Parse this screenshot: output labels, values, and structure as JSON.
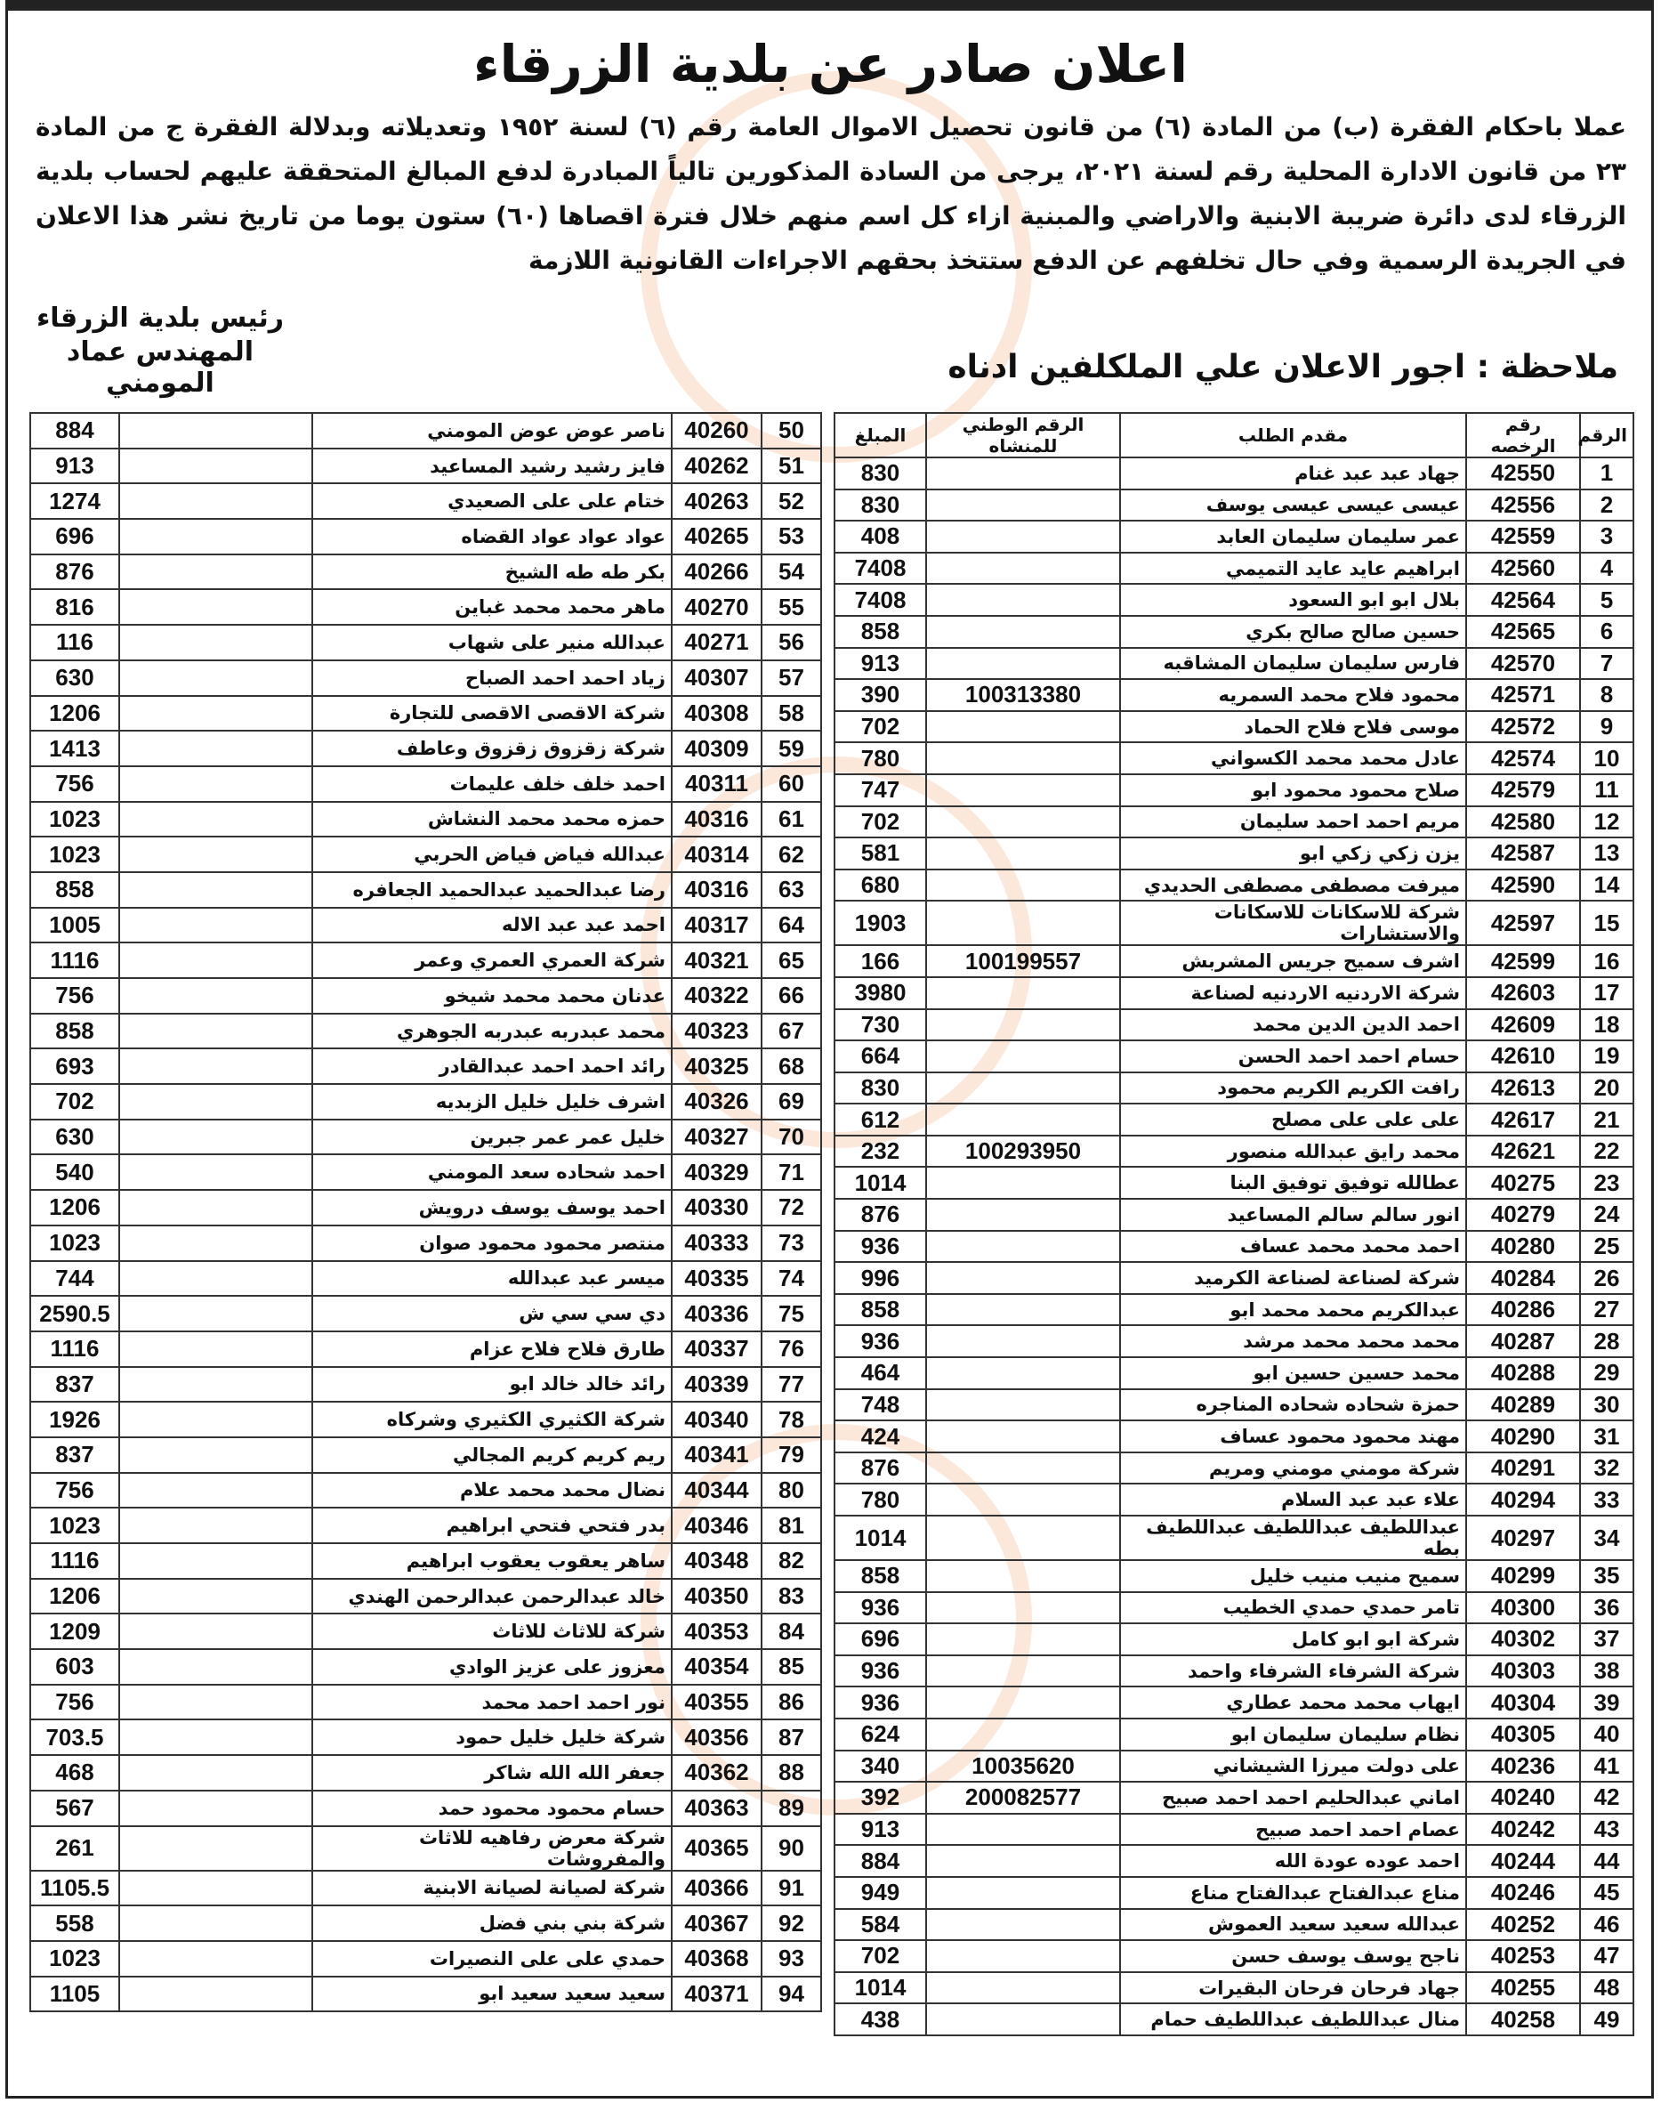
{
  "title": "اعلان صادر عن بلدية الزرقاء",
  "paragraph_lines": [
    "عملا باحكام الفقرة (ب) من المادة (٦) من قانون تحصيل الاموال العامة رقم (٦) لسنة ١٩٥٢ وتعديلاته وبدلالة الفقرة ج من المادة",
    "٢٣ من قانون الادارة المحلية رقم لسنة ٢٠٢١، يرجى من السادة المذكورين تالياً المبادرة لدفع المبالغ المتحققة عليهم لحساب بلدية",
    "الزرقاء لدى دائرة ضريبة الابنية والاراضي والمبنية ازاء كل اسم منهم خلال فترة اقصاها (٦٠) ستون يوما من",
    "تاريخ نشر هذا الاعلان في الجريدة الرسمية وفي حال تخلفهم عن الدفع ستتخذ بحقهم الاجراءات القانونية اللازمة"
  ],
  "signature": {
    "line1": "رئيس بلدية الزرقاء",
    "line2": "المهندس عماد المومني"
  },
  "note": "ملاحظة : اجور الاعلان علي الملكلفين ادناه",
  "table": {
    "headers": {
      "num": "الرقم",
      "license": "رقم الرخصه",
      "name": "مقدم الطلب",
      "national": "الرقم الوطني  للمنشاه",
      "amount": "المبلغ"
    },
    "right_rows": [
      {
        "num": "1",
        "license": "42550",
        "name": "جهاد عبد عبد غنام",
        "national": "",
        "amount": "830"
      },
      {
        "num": "2",
        "license": "42556",
        "name": "عيسى عيسى عيسى يوسف",
        "national": "",
        "amount": "830"
      },
      {
        "num": "3",
        "license": "42559",
        "name": "عمر سليمان سليمان العابد",
        "national": "",
        "amount": "408"
      },
      {
        "num": "4",
        "license": "42560",
        "name": "ابراهيم عايد عايد التميمي",
        "national": "",
        "amount": "7408"
      },
      {
        "num": "5",
        "license": "42564",
        "name": "بلال ابو ابو السعود",
        "national": "",
        "amount": "7408"
      },
      {
        "num": "6",
        "license": "42565",
        "name": "حسين صالح صالح بكري",
        "national": "",
        "amount": "858"
      },
      {
        "num": "7",
        "license": "42570",
        "name": "فارس سليمان سليمان المشاقبه",
        "national": "",
        "amount": "913"
      },
      {
        "num": "8",
        "license": "42571",
        "name": "محمود فلاح محمد السمريه",
        "national": "100313380",
        "amount": "390"
      },
      {
        "num": "9",
        "license": "42572",
        "name": "موسى فلاح فلاح الحماد",
        "national": "",
        "amount": "702"
      },
      {
        "num": "10",
        "license": "42574",
        "name": "عادل محمد محمد الكسواني",
        "national": "",
        "amount": "780"
      },
      {
        "num": "11",
        "license": "42579",
        "name": "صلاح محمود محمود ابو",
        "national": "",
        "amount": "747"
      },
      {
        "num": "12",
        "license": "42580",
        "name": "مريم احمد احمد سليمان",
        "national": "",
        "amount": "702"
      },
      {
        "num": "13",
        "license": "42587",
        "name": "يزن زكي زكي ابو",
        "national": "",
        "amount": "581"
      },
      {
        "num": "14",
        "license": "42590",
        "name": "ميرفت مصطفى مصطفى الحديدي",
        "national": "",
        "amount": "680"
      },
      {
        "num": "15",
        "license": "42597",
        "name": "شركة للاسكانات للاسكانات والاستشارات",
        "national": "",
        "amount": "1903"
      },
      {
        "num": "16",
        "license": "42599",
        "name": "اشرف سميح جريس المشربش",
        "national": "100199557",
        "amount": "166"
      },
      {
        "num": "17",
        "license": "42603",
        "name": "شركة الاردنيه الاردنيه لصناعة",
        "national": "",
        "amount": "3980"
      },
      {
        "num": "18",
        "license": "42609",
        "name": "احمد الدين الدين محمد",
        "national": "",
        "amount": "730"
      },
      {
        "num": "19",
        "license": "42610",
        "name": "حسام احمد احمد الحسن",
        "national": "",
        "amount": "664"
      },
      {
        "num": "20",
        "license": "42613",
        "name": "رافت الكريم الكريم محمود",
        "national": "",
        "amount": "830"
      },
      {
        "num": "21",
        "license": "42617",
        "name": "على على على مصلح",
        "national": "",
        "amount": "612"
      },
      {
        "num": "22",
        "license": "42621",
        "name": "محمد رايق عبدالله منصور",
        "national": "100293950",
        "amount": "232"
      },
      {
        "num": "23",
        "license": "40275",
        "name": "عطالله توفيق توفيق البنا",
        "national": "",
        "amount": "1014"
      },
      {
        "num": "24",
        "license": "40279",
        "name": "انور سالم سالم المساعيد",
        "national": "",
        "amount": "876"
      },
      {
        "num": "25",
        "license": "40280",
        "name": "احمد محمد محمد عساف",
        "national": "",
        "amount": "936"
      },
      {
        "num": "26",
        "license": "40284",
        "name": "شركة لصناعة لصناعة الكرميد",
        "national": "",
        "amount": "996"
      },
      {
        "num": "27",
        "license": "40286",
        "name": "عبدالكريم محمد محمد ابو",
        "national": "",
        "amount": "858"
      },
      {
        "num": "28",
        "license": "40287",
        "name": "محمد محمد محمد مرشد",
        "national": "",
        "amount": "936"
      },
      {
        "num": "29",
        "license": "40288",
        "name": "محمد حسين حسين ابو",
        "national": "",
        "amount": "464"
      },
      {
        "num": "30",
        "license": "40289",
        "name": "حمزة شحاده شحاده المناجره",
        "national": "",
        "amount": "748"
      },
      {
        "num": "31",
        "license": "40290",
        "name": "مهند محمود محمود عساف",
        "national": "",
        "amount": "424"
      },
      {
        "num": "32",
        "license": "40291",
        "name": "شركة مومني مومني ومريم",
        "national": "",
        "amount": "876"
      },
      {
        "num": "33",
        "license": "40294",
        "name": "علاء عبد عبد السلام",
        "national": "",
        "amount": "780"
      },
      {
        "num": "34",
        "license": "40297",
        "name": "عبداللطيف عبداللطيف  عبداللطيف  بطه",
        "national": "",
        "amount": "1014"
      },
      {
        "num": "35",
        "license": "40299",
        "name": "سميح منيب منيب خليل",
        "national": "",
        "amount": "858"
      },
      {
        "num": "36",
        "license": "40300",
        "name": "تامر حمدي حمدي الخطيب",
        "national": "",
        "amount": "936"
      },
      {
        "num": "37",
        "license": "40302",
        "name": "شركة ابو ابو كامل",
        "national": "",
        "amount": "696"
      },
      {
        "num": "38",
        "license": "40303",
        "name": "شركة الشرفاء الشرفاء واحمد",
        "national": "",
        "amount": "936"
      },
      {
        "num": "39",
        "license": "40304",
        "name": "ايهاب محمد محمد عطاري",
        "national": "",
        "amount": "936"
      },
      {
        "num": "40",
        "license": "40305",
        "name": "نظام سليمان سليمان ابو",
        "national": "",
        "amount": "624"
      },
      {
        "num": "41",
        "license": "40236",
        "name": "على دولت ميرزا الشيشاني",
        "national": "10035620",
        "amount": "340"
      },
      {
        "num": "42",
        "license": "40240",
        "name": "اماني عبدالحليم احمد احمد صبيح",
        "national": "200082577",
        "amount": "392"
      },
      {
        "num": "43",
        "license": "40242",
        "name": "عصام احمد احمد صبيح",
        "national": "",
        "amount": "913"
      },
      {
        "num": "44",
        "license": "40244",
        "name": "احمد عوده عودة الله",
        "national": "",
        "amount": "884"
      },
      {
        "num": "45",
        "license": "40246",
        "name": "مناع عبدالفتاح عبدالفتاح مناع",
        "national": "",
        "amount": "949"
      },
      {
        "num": "46",
        "license": "40252",
        "name": "عبدالله سعيد سعيد العموش",
        "national": "",
        "amount": "584"
      },
      {
        "num": "47",
        "license": "40253",
        "name": "ناجح يوسف يوسف حسن",
        "national": "",
        "amount": "702"
      },
      {
        "num": "48",
        "license": "40255",
        "name": "جهاد فرحان فرحان البقيرات",
        "national": "",
        "amount": "1014"
      },
      {
        "num": "49",
        "license": "40258",
        "name": "منال عبداللطيف عبداللطيف حمام",
        "national": "",
        "amount": "438"
      }
    ],
    "left_rows": [
      {
        "num": "50",
        "license": "40260",
        "name": "ناصر عوض عوض المومني",
        "national": "",
        "amount": "884"
      },
      {
        "num": "51",
        "license": "40262",
        "name": "فايز رشيد رشيد المساعيد",
        "national": "",
        "amount": "913"
      },
      {
        "num": "52",
        "license": "40263",
        "name": "ختام على على الصعيدي",
        "national": "",
        "amount": "1274"
      },
      {
        "num": "53",
        "license": "40265",
        "name": "عواد عواد عواد القضاه",
        "national": "",
        "amount": "696"
      },
      {
        "num": "54",
        "license": "40266",
        "name": "بكر طه طه الشيخ",
        "national": "",
        "amount": "876"
      },
      {
        "num": "55",
        "license": "40270",
        "name": "ماهر محمد محمد غباين",
        "national": "",
        "amount": "816"
      },
      {
        "num": "56",
        "license": "40271",
        "name": "عبدالله منير على شهاب",
        "national": "",
        "amount": "116"
      },
      {
        "num": "57",
        "license": "40307",
        "name": "زياد احمد احمد الصباح",
        "national": "",
        "amount": "630"
      },
      {
        "num": "58",
        "license": "40308",
        "name": "شركة الاقصى الاقصى للتجارة",
        "national": "",
        "amount": "1206"
      },
      {
        "num": "59",
        "license": "40309",
        "name": "شركة زقزوق  زقزوق وعاطف",
        "national": "",
        "amount": "1413"
      },
      {
        "num": "60",
        "license": "40311",
        "name": "احمد خلف خلف عليمات",
        "national": "",
        "amount": "756"
      },
      {
        "num": "61",
        "license": "40316",
        "name": "حمزه محمد محمد النشاش",
        "national": "",
        "amount": "1023"
      },
      {
        "num": "62",
        "license": "40314",
        "name": "عبدالله فياض فياض الحربي",
        "national": "",
        "amount": "1023"
      },
      {
        "num": "63",
        "license": "40316",
        "name": "رضا عبدالحميد عبدالحميد الجعافره",
        "national": "",
        "amount": "858"
      },
      {
        "num": "64",
        "license": "40317",
        "name": "احمد عبد عبد الاله",
        "national": "",
        "amount": "1005"
      },
      {
        "num": "65",
        "license": "40321",
        "name": "شركة العمري العمري وعمر",
        "national": "",
        "amount": "1116"
      },
      {
        "num": "66",
        "license": "40322",
        "name": "عدنان محمد محمد شيخو",
        "national": "",
        "amount": "756"
      },
      {
        "num": "67",
        "license": "40323",
        "name": "محمد عبدربه عبدربه الجوهري",
        "national": "",
        "amount": "858"
      },
      {
        "num": "68",
        "license": "40325",
        "name": "رائد احمد احمد عبدالقادر",
        "national": "",
        "amount": "693"
      },
      {
        "num": "69",
        "license": "40326",
        "name": "اشرف خليل خليل الزبديه",
        "national": "",
        "amount": "702"
      },
      {
        "num": "70",
        "license": "40327",
        "name": "خليل عمر عمر جبرين",
        "national": "",
        "amount": "630"
      },
      {
        "num": "71",
        "license": "40329",
        "name": "احمد شحاده سعد المومني",
        "national": "",
        "amount": "540"
      },
      {
        "num": "72",
        "license": "40330",
        "name": "احمد يوسف يوسف درويش",
        "national": "",
        "amount": "1206"
      },
      {
        "num": "73",
        "license": "40333",
        "name": "منتصر محمود محمود صوان",
        "national": "",
        "amount": "1023"
      },
      {
        "num": "74",
        "license": "40335",
        "name": "ميسر عبد عبدالله",
        "national": "",
        "amount": "744"
      },
      {
        "num": "75",
        "license": "40336",
        "name": "دي سي سي ش",
        "national": "",
        "amount": "2590.5"
      },
      {
        "num": "76",
        "license": "40337",
        "name": "طارق فلاح فلاح عزام",
        "national": "",
        "amount": "1116"
      },
      {
        "num": "77",
        "license": "40339",
        "name": "رائد خالد خالد ابو",
        "national": "",
        "amount": "837"
      },
      {
        "num": "78",
        "license": "40340",
        "name": "شركة الكثيري الكثيري وشركاه",
        "national": "",
        "amount": "1926"
      },
      {
        "num": "79",
        "license": "40341",
        "name": "ريم كريم كريم المجالي",
        "national": "",
        "amount": "837"
      },
      {
        "num": "80",
        "license": "40344",
        "name": "نضال محمد محمد علام",
        "national": "",
        "amount": "756"
      },
      {
        "num": "81",
        "license": "40346",
        "name": "بدر فتحي فتحي ابراهيم",
        "national": "",
        "amount": "1023"
      },
      {
        "num": "82",
        "license": "40348",
        "name": "ساهر يعقوب يعقوب ابراهيم",
        "national": "",
        "amount": "1116"
      },
      {
        "num": "83",
        "license": "40350",
        "name": "خالد عبدالرحمن عبدالرحمن الهندي",
        "national": "",
        "amount": "1206"
      },
      {
        "num": "84",
        "license": "40353",
        "name": "شركة للاثاث للاثاث",
        "national": "",
        "amount": "1209"
      },
      {
        "num": "85",
        "license": "40354",
        "name": "معزوز على عزيز الوادي",
        "national": "",
        "amount": "603"
      },
      {
        "num": "86",
        "license": "40355",
        "name": "نور احمد احمد محمد",
        "national": "",
        "amount": "756"
      },
      {
        "num": "87",
        "license": "40356",
        "name": "شركة خليل خليل حمود",
        "national": "",
        "amount": "703.5"
      },
      {
        "num": "88",
        "license": "40362",
        "name": "جعفر الله الله شاكر",
        "national": "",
        "amount": "468"
      },
      {
        "num": "89",
        "license": "40363",
        "name": "حسام محمود محمود حمد",
        "national": "",
        "amount": "567"
      },
      {
        "num": "90",
        "license": "40365",
        "name": "شركة معرض رفاهيه للاثاث والمفروشات",
        "national": "",
        "amount": "261"
      },
      {
        "num": "91",
        "license": "40366",
        "name": "شركة لصيانة لصيانة الابنية",
        "national": "",
        "amount": "1105.5"
      },
      {
        "num": "92",
        "license": "40367",
        "name": "شركة بني بني فضل",
        "national": "",
        "amount": "558"
      },
      {
        "num": "93",
        "license": "40368",
        "name": "حمدي على على النصيرات",
        "national": "",
        "amount": "1023"
      },
      {
        "num": "94",
        "license": "40371",
        "name": "سعيد سعيد سعيد ابو",
        "national": "",
        "amount": "1105"
      }
    ]
  }
}
